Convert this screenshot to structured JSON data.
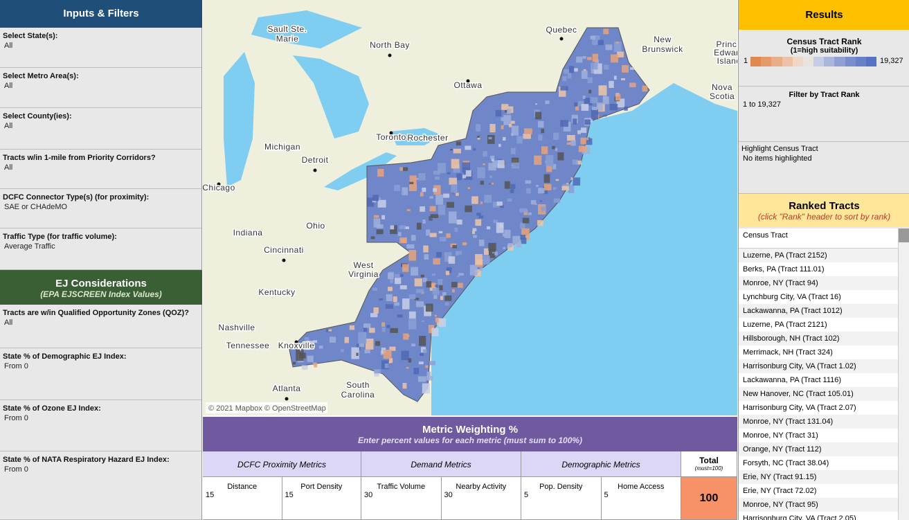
{
  "inputs": {
    "title": "Inputs & Filters",
    "filters": [
      {
        "label": "Select State(s):",
        "value": "All"
      },
      {
        "label": "Select Metro Area(s):",
        "value": "All"
      },
      {
        "label": "Select County(ies):",
        "value": "All"
      },
      {
        "label": "Tracts w/in 1-mile from Priority Corridors?",
        "value": "All"
      },
      {
        "label": "DCFC Connector Type(s) (for proximity):",
        "value": "SAE or CHAdeMO"
      },
      {
        "label": "Traffic Type (for traffic volume):",
        "value": "Average Traffic"
      }
    ]
  },
  "ej": {
    "title": "EJ Considerations",
    "subtitle": "(EPA EJSCREEN Index Values)",
    "filters": [
      {
        "label": "Tracts are w/in Qualified Opportunity Zones (QOZ)?",
        "value": "All"
      },
      {
        "label": "State % of Demographic EJ Index:",
        "value": "From 0"
      },
      {
        "label": "State % of Ozone EJ Index:",
        "value": "From 0"
      },
      {
        "label": "State % of NATA Respiratory Hazard EJ Index:",
        "value": "From 0"
      }
    ]
  },
  "map": {
    "labels": [
      "Sault Ste.",
      "Marie",
      "North Bay",
      "Quebec",
      "New",
      "Brunswick",
      "Prince",
      "Edward",
      "Island",
      "Ottawa",
      "Nova",
      "Scotia",
      "Toronto",
      "Rochester",
      "Michigan",
      "Detroit",
      "Chicago",
      "Indiana",
      "Ohio",
      "Cincinnati",
      "West",
      "Virginia",
      "Kentucky",
      "Nashville",
      "Tennessee",
      "Knoxville",
      "Atlanta",
      "South",
      "Carolina"
    ],
    "attribution": "© 2021 Mapbox © OpenStreetMap"
  },
  "weighting": {
    "title": "Metric Weighting %",
    "subtitle": "Enter percent values for each metric (must sum to 100%)",
    "groups": [
      {
        "name": "DCFC Proximity Metrics",
        "metrics": [
          {
            "name": "Distance",
            "value": 15
          },
          {
            "name": "Port Density",
            "value": 15
          }
        ]
      },
      {
        "name": "Demand Metrics",
        "metrics": [
          {
            "name": "Traffic Volume",
            "value": 30
          },
          {
            "name": "Nearby Activity",
            "value": 30
          }
        ]
      },
      {
        "name": "Demographic Metrics",
        "metrics": [
          {
            "name": "Pop. Density",
            "value": 5
          },
          {
            "name": "Home Access",
            "value": 5
          }
        ]
      }
    ],
    "total": {
      "label": "Total",
      "note": "(must=100)",
      "value": 100
    }
  },
  "results": {
    "title": "Results",
    "rank_title": "Census Tract Rank",
    "rank_subtitle": "(1=high suitability)",
    "rank_min": "1",
    "rank_max": "19,327",
    "filter_title": "Filter by Tract Rank",
    "filter_value": "1 to 19,327",
    "highlight_title": "Highlight Census Tract",
    "highlight_value": "No items highlighted"
  },
  "ranked": {
    "title": "Ranked Tracts",
    "subtitle": "(click \"Rank\" header to sort by rank)",
    "column": "Census Tract",
    "rows": [
      "Luzerne, PA (Tract 2152)",
      "Berks, PA (Tract 111.01)",
      "Monroe, NY (Tract 94)",
      "Lynchburg City, VA (Tract 16)",
      "Lackawanna, PA (Tract 1012)",
      "Luzerne, PA (Tract 2121)",
      "Hillsborough, NH (Tract 102)",
      "Merrimack, NH (Tract 324)",
      "Harrisonburg City, VA (Tract 1.02)",
      "Lackawanna, PA (Tract 1116)",
      "New Hanover, NC (Tract 105.01)",
      "Harrisonburg City, VA (Tract 2.07)",
      "Monroe, NY (Tract 131.04)",
      "Monroe, NY (Tract 31)",
      "Orange, NY (Tract 112)",
      "Forsyth, NC (Tract 38.04)",
      "Erie, NY (Tract 91.15)",
      "Erie, NY (Tract 72.02)",
      "Monroe, NY (Tract 95)",
      "Harrisonburg City, VA (Tract 2.05)"
    ]
  }
}
